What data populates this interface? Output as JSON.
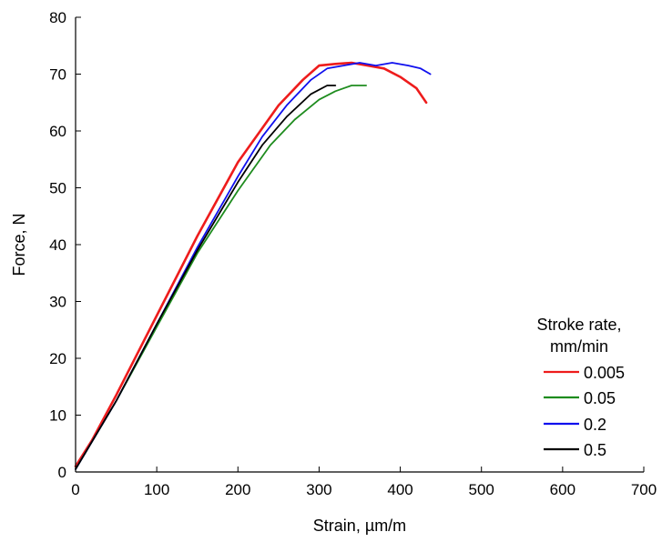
{
  "chart_data": {
    "type": "line",
    "title": "",
    "xlabel": "Strain, µm/m",
    "ylabel": "Force, N",
    "xlim": [
      0,
      700
    ],
    "ylim": [
      0,
      80
    ],
    "xticks": [
      0,
      100,
      200,
      300,
      400,
      500,
      600,
      700
    ],
    "yticks": [
      0,
      10,
      20,
      30,
      40,
      50,
      60,
      70,
      80
    ],
    "grid": false,
    "legend": {
      "title_line1": "Stroke rate,",
      "title_line2": "mm/min",
      "placement": "right"
    },
    "series": [
      {
        "name": "0.005",
        "color": "#ee1c1c",
        "points": [
          [
            0,
            1
          ],
          [
            20,
            5.5
          ],
          [
            50,
            13.5
          ],
          [
            100,
            27.5
          ],
          [
            150,
            41.5
          ],
          [
            200,
            54.5
          ],
          [
            250,
            64.5
          ],
          [
            280,
            69
          ],
          [
            300,
            71.5
          ],
          [
            320,
            71.8
          ],
          [
            340,
            72
          ],
          [
            360,
            71.5
          ],
          [
            380,
            71
          ],
          [
            400,
            69.5
          ],
          [
            420,
            67.5
          ],
          [
            432,
            65
          ]
        ]
      },
      {
        "name": "0.05",
        "color": "#1e8c1e",
        "points": [
          [
            0,
            0.5
          ],
          [
            50,
            12.5
          ],
          [
            100,
            25.5
          ],
          [
            150,
            38.5
          ],
          [
            200,
            49.5
          ],
          [
            240,
            57.5
          ],
          [
            270,
            62
          ],
          [
            300,
            65.5
          ],
          [
            320,
            67
          ],
          [
            340,
            68
          ],
          [
            358,
            68
          ]
        ]
      },
      {
        "name": "0.2",
        "color": "#1010ee",
        "points": [
          [
            0,
            0.5
          ],
          [
            50,
            12.5
          ],
          [
            100,
            26
          ],
          [
            150,
            39.5
          ],
          [
            200,
            52
          ],
          [
            230,
            59
          ],
          [
            260,
            64.5
          ],
          [
            290,
            69
          ],
          [
            310,
            71
          ],
          [
            330,
            71.5
          ],
          [
            350,
            72
          ],
          [
            370,
            71.5
          ],
          [
            390,
            72
          ],
          [
            410,
            71.5
          ],
          [
            425,
            71
          ],
          [
            437,
            70
          ]
        ]
      },
      {
        "name": "0.5",
        "color": "#000000",
        "points": [
          [
            0,
            0.5
          ],
          [
            50,
            12.5
          ],
          [
            100,
            26
          ],
          [
            150,
            39
          ],
          [
            200,
            51
          ],
          [
            230,
            57.5
          ],
          [
            260,
            62.5
          ],
          [
            290,
            66.5
          ],
          [
            310,
            68
          ],
          [
            320,
            68
          ]
        ]
      }
    ]
  }
}
